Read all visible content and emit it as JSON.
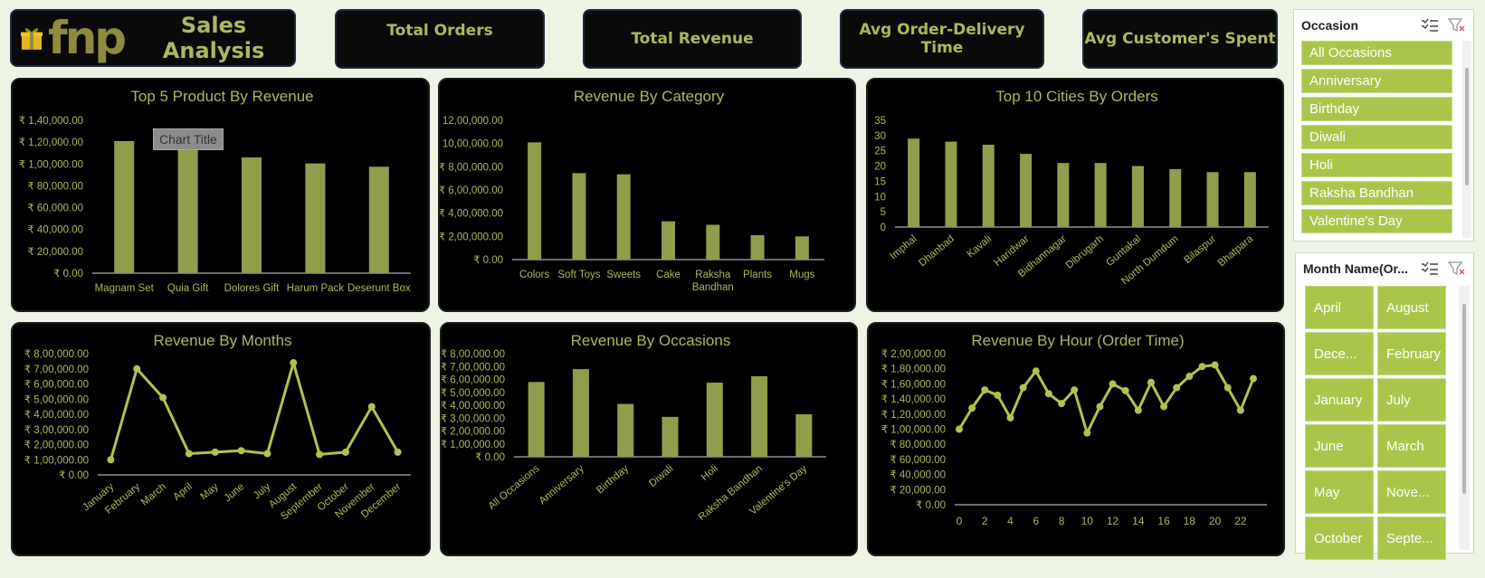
{
  "header": {
    "logo_text": "fnp",
    "title": "Sales Analysis",
    "kpis": [
      "Total Orders",
      "Total Revenue",
      "Avg Order-Delivery Time",
      "Avg Customer's Spent"
    ]
  },
  "colors": {
    "accent": "#aeb85a",
    "bar": "#8f9e4a",
    "line": "#b2c24f",
    "panel": "#000000",
    "slicer_item": "#a9c64a"
  },
  "chart_popup": "Chart Title",
  "slicer_occasion": {
    "title": "Occasion",
    "items": [
      "All Occasions",
      "Anniversary",
      "Birthday",
      "Diwali",
      "Holi",
      "Raksha Bandhan",
      "Valentine's Day"
    ]
  },
  "slicer_month": {
    "title": "Month Name(Or...",
    "items": [
      "April",
      "August",
      "Dece...",
      "February",
      "January",
      "July",
      "June",
      "March",
      "May",
      "Nove...",
      "October",
      "Septe..."
    ]
  },
  "chart_data": [
    {
      "type": "bar",
      "title": "Top 5 Product By Revenue",
      "categories": [
        "Magnam Set",
        "Quia Gift",
        "Dolores Gift",
        "Harum Pack",
        "Deserunt Box"
      ],
      "values": [
        121000,
        114000,
        106000,
        100500,
        97500
      ],
      "ylim": [
        0,
        140000
      ],
      "yticks": [
        "₹ 0.00",
        "₹ 20,000.00",
        "₹ 40,000.00",
        "₹ 60,000.00",
        "₹ 80,000.00",
        "₹ 1,00,000.00",
        "₹ 1,20,000.00",
        "₹ 1,40,000.00"
      ]
    },
    {
      "type": "bar",
      "title": "Revenue By Category",
      "categories": [
        "Colors",
        "Soft Toys",
        "Sweets",
        "Cake",
        "Raksha Bandhan",
        "Plants",
        "Mugs"
      ],
      "values": [
        1010000,
        745000,
        735000,
        330000,
        300000,
        210000,
        200000
      ],
      "ylim": [
        0,
        1200000
      ],
      "yticks": [
        "₹ 0.00",
        "₹ 2,00,000.00",
        "₹ 4,00,000.00",
        "₹ 6,00,000.00",
        "₹ 8,00,000.00",
        "₹ 10,00,000.00",
        "₹ 12,00,000.00"
      ]
    },
    {
      "type": "bar",
      "title": "Top 10 Cities By Orders",
      "categories": [
        "Imphal",
        "Dhanbad",
        "Kavali",
        "Haridwar",
        "Bidhannagar",
        "Dibrugarh",
        "Guntakal",
        "North Dumdum",
        "Bilaspur",
        "Bhatpara"
      ],
      "values": [
        29,
        28,
        27,
        24,
        21,
        21,
        20,
        19,
        18,
        18
      ],
      "ylim": [
        0,
        35
      ],
      "yticks": [
        "0",
        "5",
        "10",
        "15",
        "20",
        "25",
        "30",
        "35"
      ]
    },
    {
      "type": "line",
      "title": "Revenue By Months",
      "categories": [
        "January",
        "February",
        "March",
        "April",
        "May",
        "June",
        "July",
        "August",
        "September",
        "October",
        "November",
        "December"
      ],
      "values": [
        100000,
        700000,
        510000,
        140000,
        150000,
        160000,
        140000,
        740000,
        135000,
        150000,
        450000,
        150000
      ],
      "ylim": [
        0,
        800000
      ],
      "yticks": [
        "₹ 0.00",
        "₹ 1,00,000.00",
        "₹ 2,00,000.00",
        "₹ 3,00,000.00",
        "₹ 4,00,000.00",
        "₹ 5,00,000.00",
        "₹ 6,00,000.00",
        "₹ 7,00,000.00",
        "₹ 8,00,000.00"
      ]
    },
    {
      "type": "bar",
      "title": "Revenue By Occasions",
      "categories": [
        "All Occasions",
        "Anniversary",
        "Birthday",
        "Diwali",
        "Holi",
        "Raksha Bandhan",
        "Valentine's Day"
      ],
      "values": [
        580000,
        680000,
        410000,
        310000,
        575000,
        625000,
        330000
      ],
      "ylim": [
        0,
        800000
      ],
      "yticks": [
        "₹ 0.00",
        "₹ 1,00,000.00",
        "₹ 2,00,000.00",
        "₹ 3,00,000.00",
        "₹ 4,00,000.00",
        "₹ 5,00,000.00",
        "₹ 6,00,000.00",
        "₹ 7,00,000.00",
        "₹ 8,00,000.00"
      ]
    },
    {
      "type": "line",
      "title": "Revenue By Hour (Order Time)",
      "x": [
        0,
        1,
        2,
        3,
        4,
        5,
        6,
        7,
        8,
        9,
        10,
        11,
        12,
        13,
        14,
        15,
        16,
        17,
        18,
        19,
        20,
        21,
        22,
        23
      ],
      "values": [
        100000,
        128000,
        152000,
        145000,
        115000,
        155000,
        177000,
        147000,
        134000,
        152000,
        95000,
        130000,
        160000,
        151000,
        125000,
        162000,
        130000,
        155000,
        170000,
        183000,
        185000,
        155000,
        125000,
        167000
      ],
      "ylim": [
        0,
        200000
      ],
      "xticks": [
        "0",
        "2",
        "4",
        "6",
        "8",
        "10",
        "12",
        "14",
        "16",
        "18",
        "20",
        "22"
      ],
      "yticks": [
        "₹ 0.00",
        "₹ 20,000.00",
        "₹ 40,000.00",
        "₹ 60,000.00",
        "₹ 80,000.00",
        "₹ 1,00,000.00",
        "₹ 1,20,000.00",
        "₹ 1,40,000.00",
        "₹ 1,60,000.00",
        "₹ 1,80,000.00",
        "₹ 2,00,000.00"
      ]
    }
  ]
}
